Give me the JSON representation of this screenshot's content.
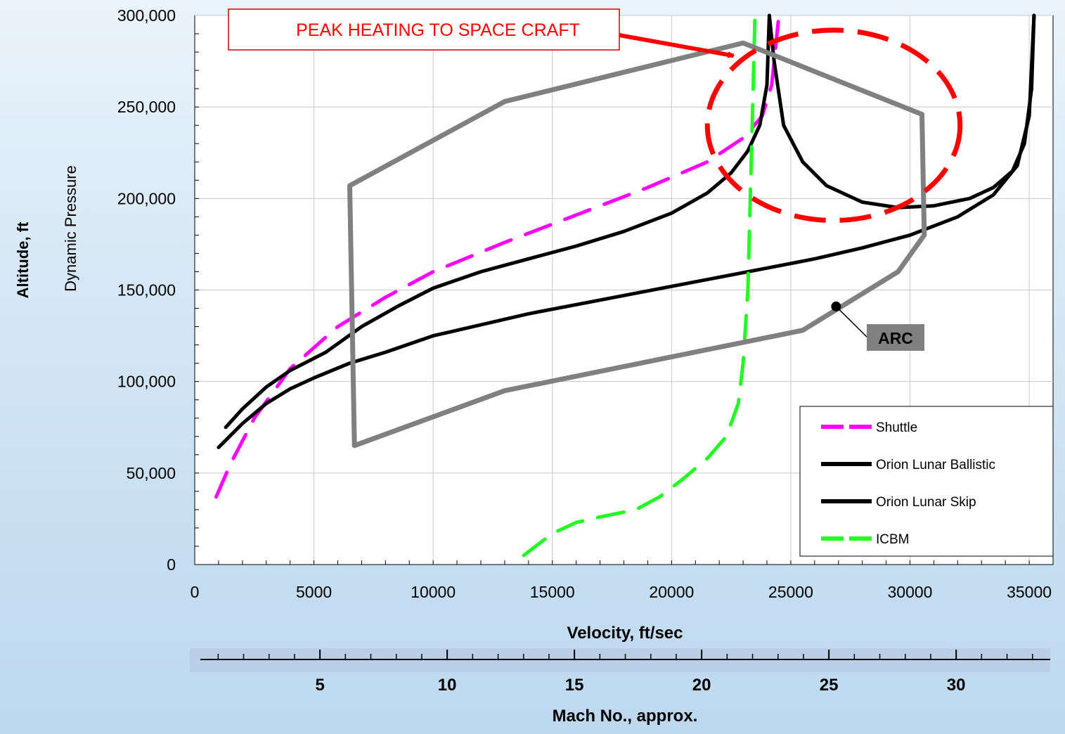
{
  "chart_data": {
    "type": "line",
    "xlabel": "Velocity, ft/sec",
    "ylabel_outer": "Altitude, ft",
    "ylabel_inner": "Dynamic Pressure",
    "secondary_xlabel": "Mach No., approx.",
    "xlim": [
      0,
      36000
    ],
    "ylim": [
      0,
      300000
    ],
    "x_ticks": [
      0,
      5000,
      10000,
      15000,
      20000,
      25000,
      30000,
      35000
    ],
    "x_tick_labels": [
      "0",
      "5000",
      "10000",
      "15000",
      "20000",
      "25000",
      "30000",
      "35000"
    ],
    "y_ticks": [
      0,
      50000,
      100000,
      150000,
      200000,
      250000,
      300000
    ],
    "y_tick_labels": [
      "0",
      "50,000",
      "100,000",
      "150,000",
      "200,000",
      "250,000",
      "300,000"
    ],
    "mach_ticks": [
      5,
      10,
      15,
      20,
      25,
      30
    ],
    "mach_tick_labels": [
      "5",
      "10",
      "15",
      "20",
      "25",
      "30"
    ],
    "grid": true,
    "legend_position": "bottom-right",
    "series": [
      {
        "name": "Shuttle",
        "color": "#ff00ff",
        "style": "dashed",
        "points": [
          [
            900,
            37000
          ],
          [
            1500,
            55000
          ],
          [
            2500,
            80000
          ],
          [
            4000,
            107000
          ],
          [
            6000,
            130000
          ],
          [
            8000,
            146000
          ],
          [
            10000,
            160000
          ],
          [
            13000,
            176000
          ],
          [
            16000,
            191000
          ],
          [
            19000,
            206000
          ],
          [
            21500,
            220000
          ],
          [
            23000,
            233000
          ],
          [
            23800,
            245000
          ],
          [
            24200,
            262000
          ],
          [
            24500,
            300000
          ]
        ]
      },
      {
        "name": "Orion Lunar Ballistic",
        "color": "#000000",
        "style": "solid",
        "points": [
          [
            1000,
            64000
          ],
          [
            2000,
            77000
          ],
          [
            3000,
            88000
          ],
          [
            4000,
            96000
          ],
          [
            5000,
            102000
          ],
          [
            6500,
            110000
          ],
          [
            8000,
            116000
          ],
          [
            10000,
            125000
          ],
          [
            12000,
            131000
          ],
          [
            14000,
            137000
          ],
          [
            16000,
            142000
          ],
          [
            18000,
            147000
          ],
          [
            20000,
            152000
          ],
          [
            22000,
            157000
          ],
          [
            24000,
            162000
          ],
          [
            26000,
            167000
          ],
          [
            28000,
            173000
          ],
          [
            30000,
            180000
          ],
          [
            32000,
            190000
          ],
          [
            33500,
            202000
          ],
          [
            34500,
            218000
          ],
          [
            35000,
            245000
          ],
          [
            35200,
            300000
          ]
        ]
      },
      {
        "name": "Orion Lunar Skip",
        "color": "#000000",
        "style": "solid",
        "points": [
          [
            1300,
            75000
          ],
          [
            2000,
            85000
          ],
          [
            3000,
            97000
          ],
          [
            4000,
            106000
          ],
          [
            5500,
            116000
          ],
          [
            7000,
            130000
          ],
          [
            8500,
            141000
          ],
          [
            10000,
            151000
          ],
          [
            12000,
            160000
          ],
          [
            14000,
            167000
          ],
          [
            16000,
            174000
          ],
          [
            18000,
            182000
          ],
          [
            20000,
            192000
          ],
          [
            21500,
            203000
          ],
          [
            22500,
            214000
          ],
          [
            23200,
            226000
          ],
          [
            23700,
            240000
          ],
          [
            24000,
            262000
          ],
          [
            24100,
            300000
          ],
          [
            24300,
            275000
          ],
          [
            24700,
            240000
          ],
          [
            25500,
            220000
          ],
          [
            26500,
            207000
          ],
          [
            28000,
            198000
          ],
          [
            29500,
            195000
          ],
          [
            31000,
            196000
          ],
          [
            32500,
            200000
          ],
          [
            33500,
            206000
          ],
          [
            34300,
            215000
          ],
          [
            34800,
            230000
          ],
          [
            35100,
            260000
          ],
          [
            35200,
            300000
          ]
        ]
      },
      {
        "name": "ICBM",
        "color": "#22ff22",
        "style": "dashed",
        "points": [
          [
            13800,
            5000
          ],
          [
            15000,
            17000
          ],
          [
            16000,
            23000
          ],
          [
            17000,
            26000
          ],
          [
            18500,
            30000
          ],
          [
            19500,
            37000
          ],
          [
            20500,
            47000
          ],
          [
            21500,
            58000
          ],
          [
            22300,
            70000
          ],
          [
            22800,
            88000
          ],
          [
            23000,
            110000
          ],
          [
            23200,
            150000
          ],
          [
            23300,
            200000
          ],
          [
            23400,
            250000
          ],
          [
            23500,
            300000
          ]
        ]
      },
      {
        "name": "ARC",
        "color": "#808080",
        "style": "solid",
        "closed": true,
        "points": [
          [
            6500,
            207000
          ],
          [
            13000,
            253000
          ],
          [
            23000,
            285000
          ],
          [
            30500,
            246000
          ],
          [
            30600,
            180000
          ],
          [
            29500,
            160000
          ],
          [
            25500,
            128000
          ],
          [
            13000,
            95000
          ],
          [
            6700,
            65000
          ]
        ]
      }
    ],
    "annotations": {
      "peak_label": "PEAK HEATING TO SPACE CRAFT",
      "arc_label": "ARC",
      "peak_ellipse": {
        "cx": 26800,
        "cy": 240000,
        "rx": 5300,
        "ry": 52000
      },
      "arrow_target": [
        22600,
        278000
      ],
      "arc_marker": [
        26900,
        141000
      ]
    },
    "legend_entries": [
      "Shuttle",
      "Orion Lunar Ballistic",
      "Orion Lunar Skip",
      "ICBM"
    ]
  }
}
